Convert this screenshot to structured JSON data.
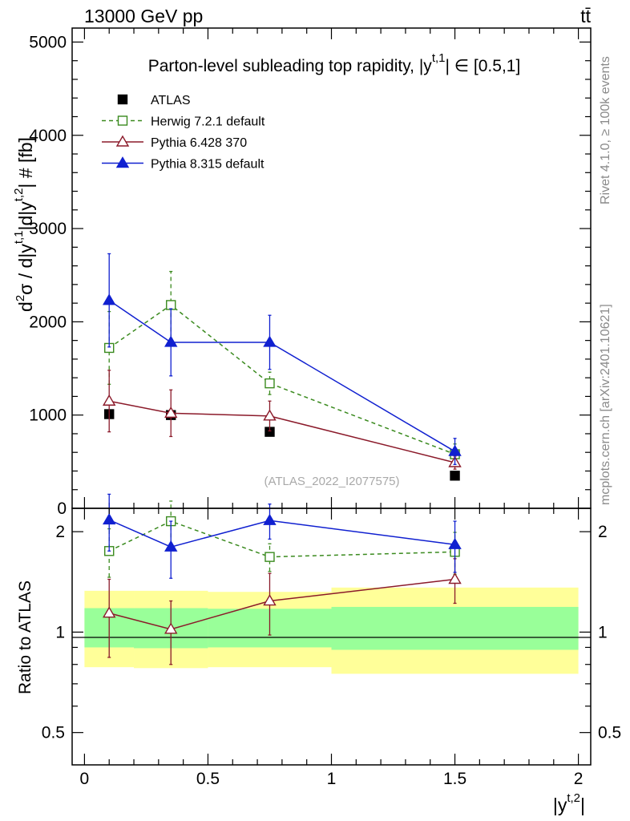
{
  "header": {
    "energy_label": "13000 GeV pp",
    "process_label": "tt̄"
  },
  "side_labels": {
    "rivet": "Rivet 4.1.0, ≥ 100k events",
    "mcplots": "mcplots.cern.ch [arXiv:2401.10621]"
  },
  "watermark": "(ATLAS_2022_I2077575)",
  "chart_data": [
    {
      "type": "line",
      "title": "Parton-level subleading top rapidity, |y^{t,1}| ∈ [0.5,1]",
      "title_main": "Parton-level subleading top rapidity, |y",
      "title_sup": "t,1",
      "title_tail": "| ∈ [0.5,1]",
      "ylabel": "d²σ / d|y^{t,1}| d|y^{t,2}| # [fb]",
      "xlabel": "|y^{t,2}|",
      "xlim": [
        -0.05,
        2.05
      ],
      "ylim": [
        0,
        5150
      ],
      "y_ticks": [
        0,
        1000,
        2000,
        3000,
        4000,
        5000
      ],
      "y_tick_labels": [
        "0",
        "1000",
        "2000",
        "3000",
        "4000",
        "5000"
      ],
      "x_bins": [
        [
          0,
          0.2
        ],
        [
          0.2,
          0.5
        ],
        [
          0.5,
          1.0
        ],
        [
          1.0,
          2.0
        ]
      ],
      "x": [
        0.1,
        0.35,
        0.75,
        1.5
      ],
      "series": [
        {
          "name": "ATLAS",
          "color": "#000000",
          "marker": "filled-square",
          "line": "none",
          "values": [
            1010,
            1000,
            820,
            350
          ],
          "err": [
            0,
            0,
            0,
            0
          ]
        },
        {
          "name": "Herwig 7.2.1 default",
          "color": "#3a8a1e",
          "marker": "open-square",
          "line": "dashed",
          "values": [
            1720,
            2180,
            1340,
            580
          ],
          "err": [
            390,
            360,
            120,
            110
          ]
        },
        {
          "name": "Pythia 6.428 370",
          "color": "#8b1a2a",
          "marker": "open-triangle",
          "line": "solid",
          "values": [
            1150,
            1020,
            990,
            490
          ],
          "err": [
            330,
            250,
            160,
            70
          ]
        },
        {
          "name": "Pythia 8.315 default",
          "color": "#1020d0",
          "marker": "filled-triangle",
          "line": "solid",
          "values": [
            2230,
            1780,
            1780,
            610
          ],
          "err": [
            500,
            360,
            290,
            140
          ]
        }
      ]
    },
    {
      "type": "line",
      "ylabel": "Ratio to ATLAS",
      "xlabel": "|y^{t,2}|",
      "xlim": [
        -0.05,
        2.05
      ],
      "ylim": [
        0.4,
        2.35
      ],
      "x_ticks": [
        0,
        0.5,
        1,
        1.5,
        2
      ],
      "x_tick_labels": [
        "0",
        "0.5",
        "1",
        "1.5",
        "2"
      ],
      "y_ticks": [
        0.5,
        1,
        2
      ],
      "y_tick_labels": [
        "0.5",
        "1",
        "2"
      ],
      "bands": {
        "x_edges": [
          0,
          0.2,
          0.5,
          1.0,
          2.0
        ],
        "outer_low": [
          0.785,
          0.78,
          0.785,
          0.75
        ],
        "outer_high": [
          1.33,
          1.33,
          1.32,
          1.36
        ],
        "inner_low": [
          0.9,
          0.895,
          0.9,
          0.885
        ],
        "inner_high": [
          1.18,
          1.18,
          1.175,
          1.19
        ],
        "outer_color": "#ffff99",
        "inner_color": "#99ff99"
      },
      "series": [
        {
          "name": "Herwig 7.2.1 default",
          "values": [
            1.75,
            2.15,
            1.68,
            1.74
          ],
          "err": [
            0.29,
            0.32,
            0.16,
            0.25
          ]
        },
        {
          "name": "Pythia 6.428 370",
          "values": [
            1.14,
            1.02,
            1.24,
            1.44
          ],
          "err": [
            0.3,
            0.22,
            0.26,
            0.22
          ]
        },
        {
          "name": "Pythia 8.315 default",
          "values": [
            2.17,
            1.8,
            2.16,
            1.83
          ],
          "err": [
            0.42,
            0.35,
            0.26,
            0.32
          ]
        }
      ]
    }
  ]
}
